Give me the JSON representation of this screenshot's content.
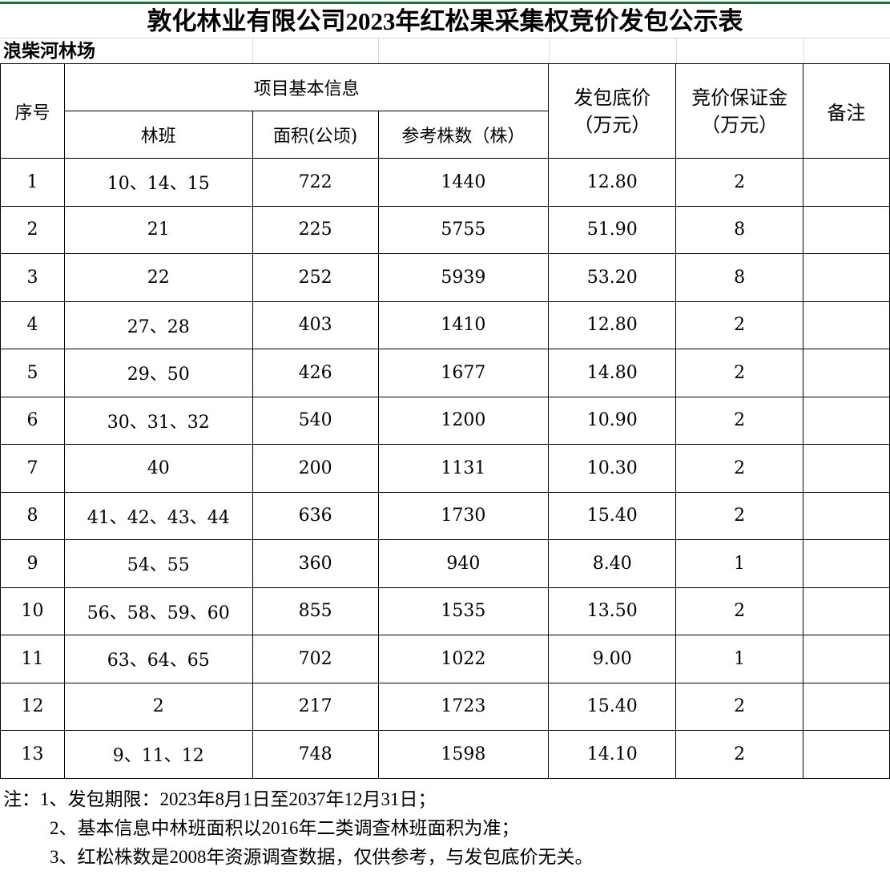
{
  "title": "敦化林业有限公司2023年红松果采集权竞价发包公示表",
  "subtitle": "浪柴河林场",
  "table": {
    "headers": {
      "index": "序号",
      "group": "项目基本信息",
      "compartment": "林班",
      "area": "面积(公顷)",
      "trees": "参考株数（株）",
      "price": "发包底价（万元）",
      "deposit": "竞价保证金（万元）",
      "remarks": "备注"
    },
    "rows": [
      [
        "1",
        "10、14、15",
        "722",
        "1440",
        "12.80",
        "2",
        ""
      ],
      [
        "2",
        "21",
        "225",
        "5755",
        "51.90",
        "8",
        ""
      ],
      [
        "3",
        "22",
        "252",
        "5939",
        "53.20",
        "8",
        ""
      ],
      [
        "4",
        "27、28",
        "403",
        "1410",
        "12.80",
        "2",
        ""
      ],
      [
        "5",
        "29、50",
        "426",
        "1677",
        "14.80",
        "2",
        ""
      ],
      [
        "6",
        "30、31、32",
        "540",
        "1200",
        "10.90",
        "2",
        ""
      ],
      [
        "7",
        "40",
        "200",
        "1131",
        "10.30",
        "2",
        ""
      ],
      [
        "8",
        "41、42、43、44",
        "636",
        "1730",
        "15.40",
        "2",
        ""
      ],
      [
        "9",
        "54、55",
        "360",
        "940",
        "8.40",
        "1",
        ""
      ],
      [
        "10",
        "56、58、59、60",
        "855",
        "1535",
        "13.50",
        "2",
        ""
      ],
      [
        "11",
        "63、64、65",
        "702",
        "1022",
        "9.00",
        "1",
        ""
      ],
      [
        "12",
        "2",
        "217",
        "1723",
        "15.40",
        "2",
        ""
      ],
      [
        "13",
        "9、11、12",
        "748",
        "1598",
        "14.10",
        "2",
        ""
      ]
    ]
  },
  "notes": [
    "注：1、发包期限：2023年8月1日至2037年12月31日；",
    "2、基本信息中林班面积以2016年二类调查林班面积为准；",
    "3、红松株数是2008年资源调查数据，仅供参考，与发包底价无关。"
  ]
}
